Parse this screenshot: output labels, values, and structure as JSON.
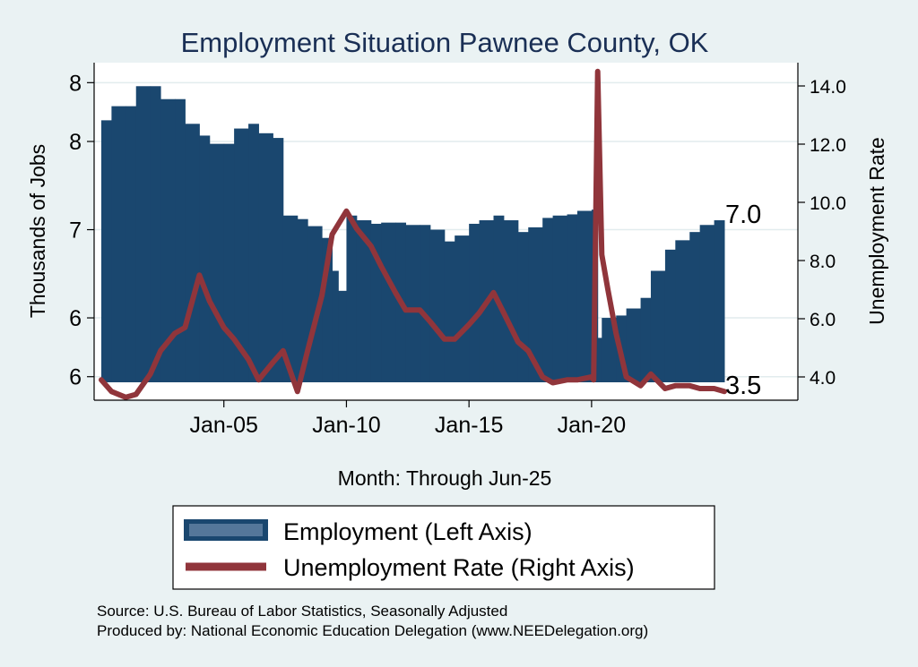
{
  "chart_data": {
    "type": "bar+line",
    "title": "Employment Situation Pawnee  County, OK",
    "xlabel": "Month: Through Jun-25",
    "ylabel_left": "Thousands of Jobs",
    "ylabel_right": "Unemployment Rate",
    "x_ticks": [
      "Jan-05",
      "Jan-10",
      "Jan-15",
      "Jan-20"
    ],
    "left_ticks": [
      "8",
      "8",
      "7",
      "6",
      "6"
    ],
    "left_tick_values": [
      8.25,
      7.75,
      7.0,
      6.25,
      5.75
    ],
    "right_ticks": [
      "14.0",
      "12.0",
      "10.0",
      "8.0",
      "6.0",
      "4.0"
    ],
    "right_tick_values": [
      14,
      12,
      10,
      8,
      6,
      4
    ],
    "ylim_left": [
      5.55,
      8.42
    ],
    "ylim_right": [
      3.2,
      14.8
    ],
    "x_range": [
      "Jan-00",
      "Jun-25"
    ],
    "grid": true,
    "legend_position": "bottom",
    "end_labels": {
      "employment": "7.0",
      "unemployment": "3.5"
    },
    "series": [
      {
        "name": "Employment (Left Axis)",
        "type": "bar",
        "color": "#1a476f",
        "points": [
          [
            "2000-01",
            7.93
          ],
          [
            "2000-06",
            8.05
          ],
          [
            "2001-01",
            8.05
          ],
          [
            "2001-06",
            8.22
          ],
          [
            "2002-01",
            8.22
          ],
          [
            "2002-06",
            8.11
          ],
          [
            "2003-01",
            8.11
          ],
          [
            "2003-06",
            7.9
          ],
          [
            "2004-01",
            7.8
          ],
          [
            "2004-06",
            7.73
          ],
          [
            "2005-01",
            7.73
          ],
          [
            "2005-06",
            7.86
          ],
          [
            "2006-01",
            7.9
          ],
          [
            "2006-06",
            7.82
          ],
          [
            "2007-01",
            7.78
          ],
          [
            "2007-06",
            7.12
          ],
          [
            "2008-01",
            7.09
          ],
          [
            "2008-06",
            7.03
          ],
          [
            "2009-01",
            6.93
          ],
          [
            "2009-06",
            6.65
          ],
          [
            "2009-09",
            6.48
          ],
          [
            "2010-01",
            7.12
          ],
          [
            "2010-06",
            7.08
          ],
          [
            "2011-01",
            7.05
          ],
          [
            "2011-06",
            7.06
          ],
          [
            "2012-01",
            7.06
          ],
          [
            "2012-06",
            7.04
          ],
          [
            "2013-01",
            7.04
          ],
          [
            "2013-06",
            7.0
          ],
          [
            "2014-01",
            6.9
          ],
          [
            "2014-06",
            6.95
          ],
          [
            "2015-01",
            7.05
          ],
          [
            "2015-06",
            7.08
          ],
          [
            "2016-01",
            7.12
          ],
          [
            "2016-06",
            7.08
          ],
          [
            "2017-01",
            6.98
          ],
          [
            "2017-06",
            7.02
          ],
          [
            "2018-01",
            7.1
          ],
          [
            "2018-06",
            7.12
          ],
          [
            "2019-01",
            7.13
          ],
          [
            "2019-06",
            7.16
          ],
          [
            "2020-01",
            7.17
          ],
          [
            "2020-04",
            6.08
          ],
          [
            "2020-06",
            6.25
          ],
          [
            "2021-01",
            6.27
          ],
          [
            "2021-06",
            6.33
          ],
          [
            "2022-01",
            6.42
          ],
          [
            "2022-06",
            6.65
          ],
          [
            "2023-01",
            6.83
          ],
          [
            "2023-06",
            6.91
          ],
          [
            "2024-01",
            6.98
          ],
          [
            "2024-06",
            7.04
          ],
          [
            "2025-01",
            7.08
          ],
          [
            "2025-06",
            7.05
          ]
        ]
      },
      {
        "name": "Unemployment Rate (Right Axis)",
        "type": "line",
        "color": "#90353b",
        "points": [
          [
            "2000-01",
            3.9
          ],
          [
            "2000-06",
            3.5
          ],
          [
            "2001-01",
            3.3
          ],
          [
            "2001-06",
            3.4
          ],
          [
            "2002-01",
            4.1
          ],
          [
            "2002-06",
            4.9
          ],
          [
            "2003-01",
            5.5
          ],
          [
            "2003-06",
            5.7
          ],
          [
            "2004-01",
            7.5
          ],
          [
            "2004-06",
            6.6
          ],
          [
            "2005-01",
            5.7
          ],
          [
            "2005-06",
            5.3
          ],
          [
            "2006-01",
            4.6
          ],
          [
            "2006-06",
            3.9
          ],
          [
            "2007-01",
            4.5
          ],
          [
            "2007-06",
            4.9
          ],
          [
            "2008-01",
            3.5
          ],
          [
            "2008-06",
            4.9
          ],
          [
            "2009-01",
            6.8
          ],
          [
            "2009-06",
            8.9
          ],
          [
            "2010-01",
            9.7
          ],
          [
            "2010-06",
            9.1
          ],
          [
            "2011-01",
            8.5
          ],
          [
            "2011-06",
            7.8
          ],
          [
            "2012-01",
            6.9
          ],
          [
            "2012-06",
            6.3
          ],
          [
            "2013-01",
            6.3
          ],
          [
            "2013-06",
            5.9
          ],
          [
            "2014-01",
            5.3
          ],
          [
            "2014-06",
            5.3
          ],
          [
            "2015-01",
            5.8
          ],
          [
            "2015-06",
            6.2
          ],
          [
            "2016-01",
            6.9
          ],
          [
            "2016-06",
            6.2
          ],
          [
            "2017-01",
            5.2
          ],
          [
            "2017-06",
            4.9
          ],
          [
            "2018-01",
            4.0
          ],
          [
            "2018-06",
            3.8
          ],
          [
            "2019-01",
            3.9
          ],
          [
            "2019-06",
            3.9
          ],
          [
            "2020-01",
            4.0
          ],
          [
            "2020-02",
            3.9
          ],
          [
            "2020-04",
            14.5
          ],
          [
            "2020-06",
            8.2
          ],
          [
            "2020-09",
            7.0
          ],
          [
            "2021-01",
            5.5
          ],
          [
            "2021-06",
            4.0
          ],
          [
            "2022-01",
            3.7
          ],
          [
            "2022-06",
            4.1
          ],
          [
            "2023-01",
            3.6
          ],
          [
            "2023-06",
            3.7
          ],
          [
            "2024-01",
            3.7
          ],
          [
            "2024-06",
            3.6
          ],
          [
            "2025-01",
            3.6
          ],
          [
            "2025-06",
            3.5
          ]
        ]
      }
    ]
  },
  "source_line": "Source: U.S. Bureau of Labor Statistics, Seasonally Adjusted",
  "produced_line": "Produced by: National Economic Education Delegation (www.NEEDelegation.org)"
}
